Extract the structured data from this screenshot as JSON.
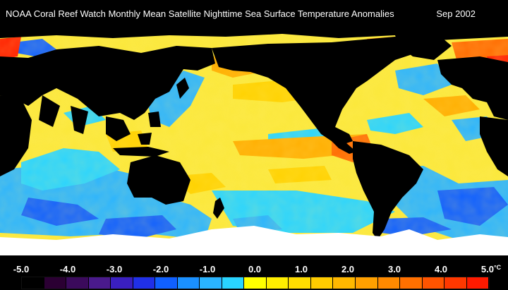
{
  "header": {
    "title": "NOAA Coral Reef Watch Monthly Mean Satellite Nighttime Sea Surface Temperature Anomalies",
    "date": "Sep 2002"
  },
  "legend": {
    "ticks": [
      "-5.0",
      "-4.0",
      "-3.0",
      "-2.0",
      "-1.0",
      "0.0",
      "1.0",
      "2.0",
      "3.0",
      "4.0",
      "5.0"
    ],
    "unit": "°C",
    "colors": [
      "#000000",
      "#2b0033",
      "#3b0a5c",
      "#4a1a8c",
      "#3a1fc0",
      "#2030e8",
      "#1060ff",
      "#1a90ff",
      "#2ab4ff",
      "#29d4ff",
      "#ffff00",
      "#ffee00",
      "#ffdd00",
      "#ffcc00",
      "#ffb800",
      "#ffa000",
      "#ff8a00",
      "#ff7000",
      "#ff5400",
      "#ff3800",
      "#ff1a00"
    ]
  },
  "map": {
    "land_color": "#000000",
    "ice_color": "#ffffff",
    "ocean_background_color": "#fbe83a",
    "anomaly_colors": {
      "cold_deep": "#1060ff",
      "cold": "#2ab4ff",
      "cool": "#29d4ff",
      "neutral": "#fff200",
      "warm": "#ffd200",
      "warmer": "#ffae00",
      "hot": "#ff6a00",
      "very_hot": "#ff2000"
    }
  }
}
